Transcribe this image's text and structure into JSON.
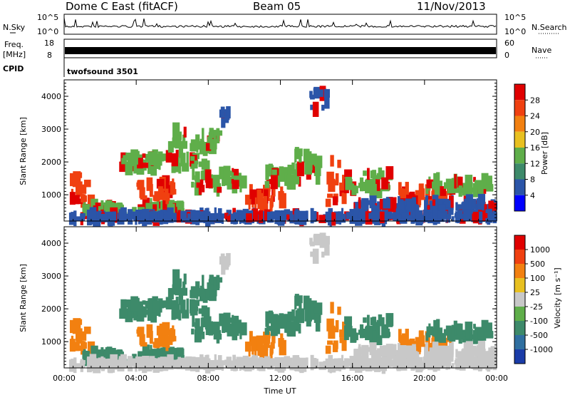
{
  "header": {
    "station": "Dome C East (fitACF)",
    "beam": "Beam 05",
    "date": "11/Nov/2013"
  },
  "status_panels": {
    "nsky_label": "N.Sky",
    "nsky_ticks": [
      "10^5",
      "10^0"
    ],
    "nsearch_label": "N.Search",
    "freq_label_top": "Freq.",
    "freq_label_unit": "[MHz]",
    "freq_ticks": [
      "18",
      "8"
    ],
    "nave_ticks": [
      "60",
      "0"
    ],
    "nave_label": "Nave",
    "cpid_label": "CPID",
    "cpid_value": "twofsound 3501"
  },
  "chart_data": [
    {
      "type": "heatmap",
      "name": "power",
      "ylabel": "Slant Range [km]",
      "xlabel": "",
      "xlim": [
        0,
        24
      ],
      "ylim": [
        200,
        4500
      ],
      "yticks": [
        "1000",
        "2000",
        "3000",
        "4000"
      ],
      "colorbar_label": "Power [dB]",
      "colorbar_ticks": [
        "4",
        "8",
        "12",
        "16",
        "20",
        "24",
        "28"
      ],
      "colorbar_colors": [
        "#0000ff",
        "#2b55a8",
        "#3d8a6a",
        "#5fae4a",
        "#e8c020",
        "#f28010",
        "#f04010",
        "#e00000"
      ],
      "colors": {
        "low": "#2b55a8",
        "mid": "#5fae4a",
        "high": "#f04010",
        "max": "#e00000"
      }
    },
    {
      "type": "heatmap",
      "name": "velocity",
      "ylabel": "Slant Range [km]",
      "xlabel": "Time UT",
      "xlim": [
        0,
        24
      ],
      "ylim": [
        200,
        4500
      ],
      "xticks": [
        "00:00",
        "04:00",
        "08:00",
        "12:00",
        "16:00",
        "20:00",
        "00:00"
      ],
      "yticks": [
        "1000",
        "2000",
        "3000",
        "4000"
      ],
      "colorbar_label": "Velocity [m s⁻¹]",
      "colorbar_ticks": [
        "1000",
        "500",
        "100",
        "25",
        "-25",
        "-100",
        "-500",
        "-1000"
      ],
      "colorbar_colors": [
        "#1a3ca8",
        "#2f6fa0",
        "#3d8a6a",
        "#5fae4a",
        "#c8c8c8",
        "#e8c020",
        "#f28010",
        "#f04010",
        "#e00000"
      ],
      "colors": {
        "toward": "#3d8a6a",
        "ground": "#c8c8c8",
        "away": "#f28010"
      }
    }
  ]
}
